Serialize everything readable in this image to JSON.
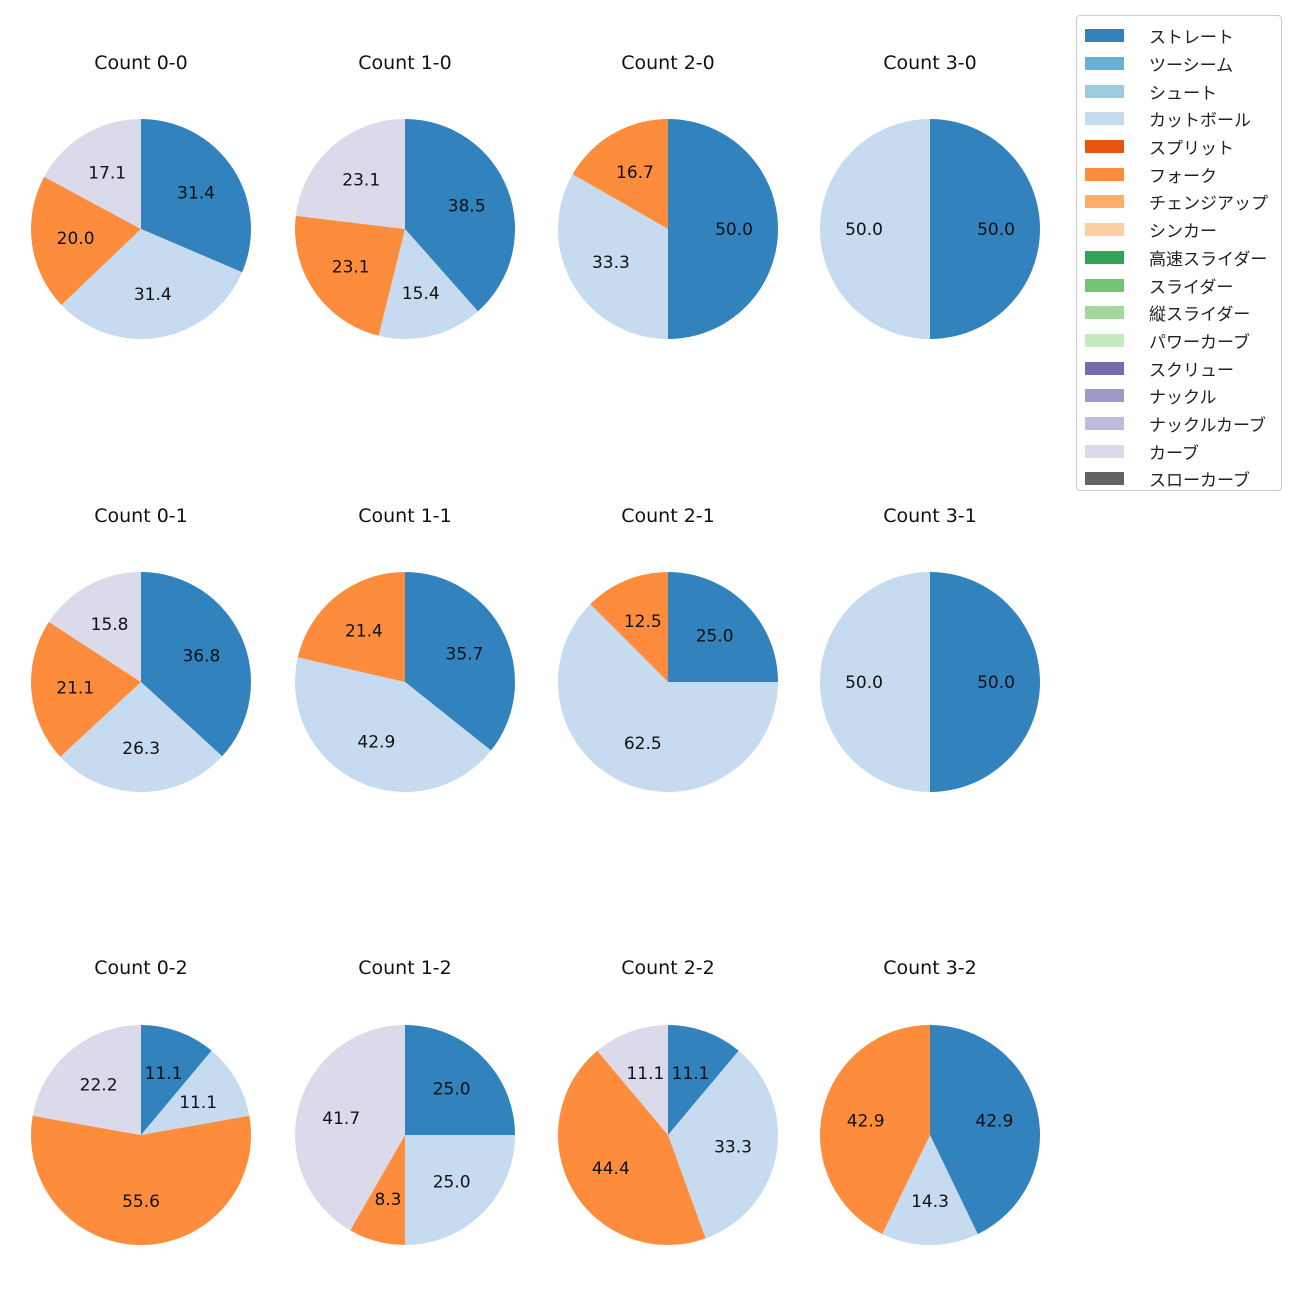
{
  "chart_data": {
    "type": "pie",
    "categories": [
      "ストレート",
      "ツーシーム",
      "シュート",
      "カットボール",
      "スプリット",
      "フォーク",
      "チェンジアップ",
      "シンカー",
      "高速スライダー",
      "スライダー",
      "縦スライダー",
      "パワーカーブ",
      "スクリュー",
      "ナックル",
      "ナックルカーブ",
      "カーブ",
      "スローカーブ"
    ],
    "colors": [
      "#3182bd",
      "#6baed6",
      "#9ecae1",
      "#c6dbef",
      "#e6550d",
      "#fd8d3c",
      "#fdae6b",
      "#fdd0a2",
      "#31a354",
      "#74c476",
      "#a1d99b",
      "#c7e9c0",
      "#756bb1",
      "#9e9ac8",
      "#bcbddc",
      "#dadaeb",
      "#636363"
    ],
    "legend_position": "top-right",
    "start_angle": 90,
    "direction": "clockwise",
    "pies": [
      {
        "title": "Count 0-0",
        "slices": [
          {
            "category": "ストレート",
            "value": 31.4
          },
          {
            "category": "カットボール",
            "value": 31.4
          },
          {
            "category": "フォーク",
            "value": 20.0
          },
          {
            "category": "カーブ",
            "value": 17.1
          }
        ]
      },
      {
        "title": "Count 1-0",
        "slices": [
          {
            "category": "ストレート",
            "value": 38.5
          },
          {
            "category": "カットボール",
            "value": 15.4
          },
          {
            "category": "フォーク",
            "value": 23.1
          },
          {
            "category": "カーブ",
            "value": 23.1
          }
        ]
      },
      {
        "title": "Count 2-0",
        "slices": [
          {
            "category": "ストレート",
            "value": 50.0
          },
          {
            "category": "カットボール",
            "value": 33.3
          },
          {
            "category": "フォーク",
            "value": 16.7
          }
        ]
      },
      {
        "title": "Count 3-0",
        "slices": [
          {
            "category": "ストレート",
            "value": 50.0
          },
          {
            "category": "カットボール",
            "value": 50.0
          }
        ]
      },
      {
        "title": "Count 0-1",
        "slices": [
          {
            "category": "ストレート",
            "value": 36.8
          },
          {
            "category": "カットボール",
            "value": 26.3
          },
          {
            "category": "フォーク",
            "value": 21.1
          },
          {
            "category": "カーブ",
            "value": 15.8
          }
        ]
      },
      {
        "title": "Count 1-1",
        "slices": [
          {
            "category": "ストレート",
            "value": 35.7
          },
          {
            "category": "カットボール",
            "value": 42.9
          },
          {
            "category": "フォーク",
            "value": 21.4
          }
        ]
      },
      {
        "title": "Count 2-1",
        "slices": [
          {
            "category": "ストレート",
            "value": 25.0
          },
          {
            "category": "カットボール",
            "value": 62.5
          },
          {
            "category": "フォーク",
            "value": 12.5
          }
        ]
      },
      {
        "title": "Count 3-1",
        "slices": [
          {
            "category": "ストレート",
            "value": 50.0
          },
          {
            "category": "カットボール",
            "value": 50.0
          }
        ]
      },
      {
        "title": "Count 0-2",
        "slices": [
          {
            "category": "ストレート",
            "value": 11.1
          },
          {
            "category": "カットボール",
            "value": 11.1
          },
          {
            "category": "フォーク",
            "value": 55.6
          },
          {
            "category": "カーブ",
            "value": 22.2
          }
        ]
      },
      {
        "title": "Count 1-2",
        "slices": [
          {
            "category": "ストレート",
            "value": 25.0
          },
          {
            "category": "カットボール",
            "value": 25.0
          },
          {
            "category": "フォーク",
            "value": 8.3
          },
          {
            "category": "カーブ",
            "value": 41.7
          }
        ]
      },
      {
        "title": "Count 2-2",
        "slices": [
          {
            "category": "ストレート",
            "value": 11.1
          },
          {
            "category": "カットボール",
            "value": 33.3
          },
          {
            "category": "フォーク",
            "value": 44.4
          },
          {
            "category": "カーブ",
            "value": 11.1
          }
        ]
      },
      {
        "title": "Count 3-2",
        "slices": [
          {
            "category": "ストレート",
            "value": 42.9
          },
          {
            "category": "カットボール",
            "value": 14.3
          },
          {
            "category": "フォーク",
            "value": 42.9
          }
        ]
      }
    ]
  }
}
